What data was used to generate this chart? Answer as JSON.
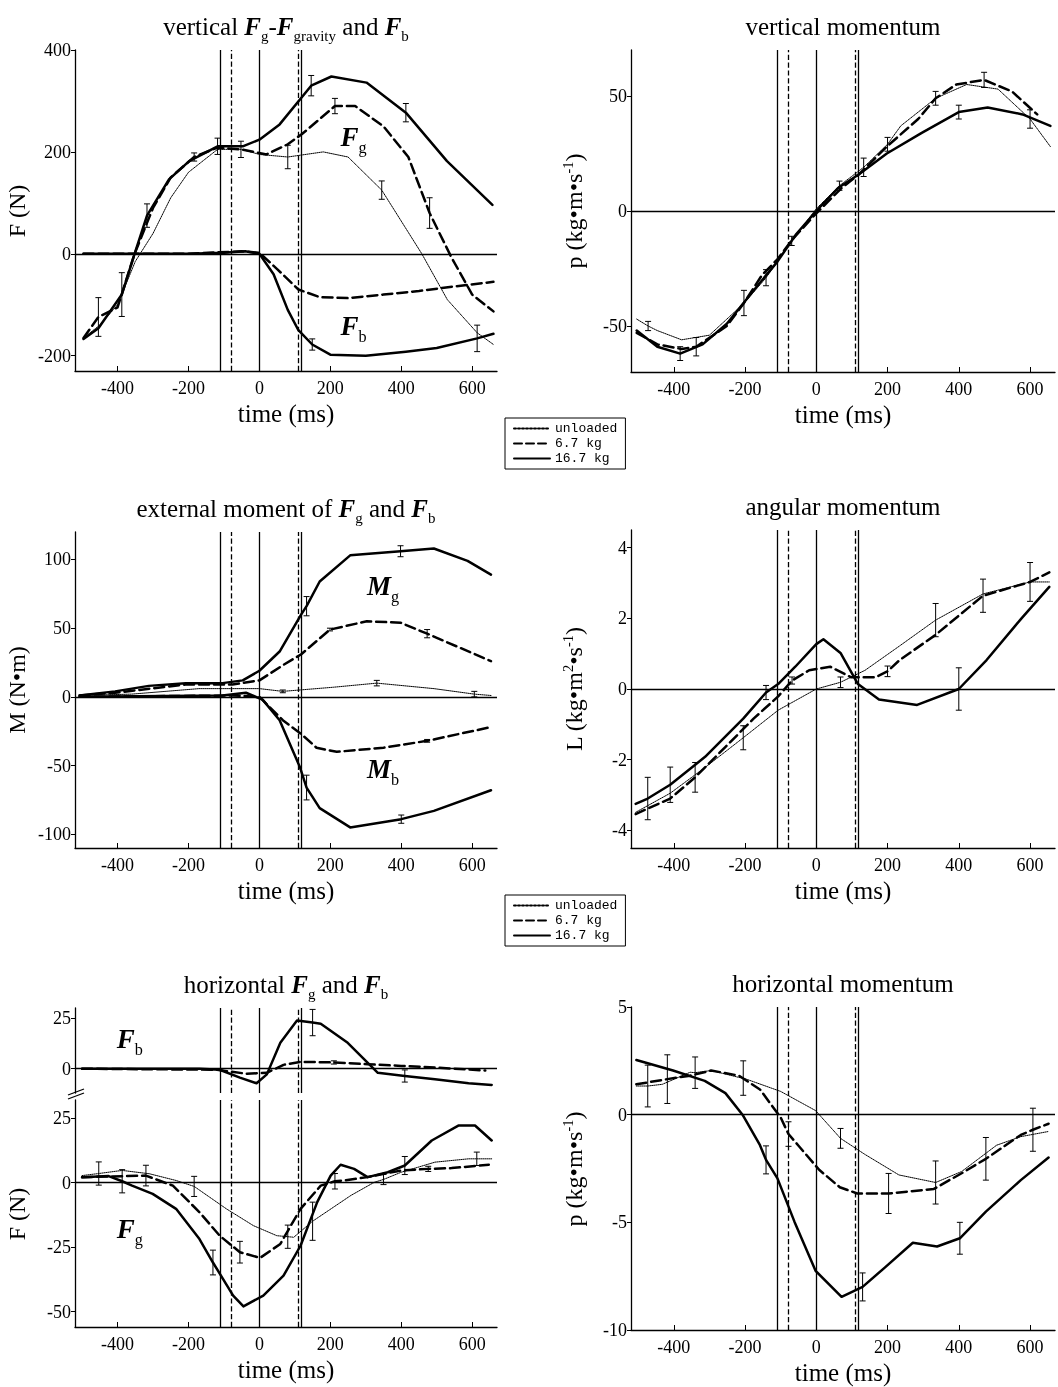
{
  "chart_data": [
    {
      "type": "line",
      "title": "vertical F$_{g}$-F$_{gravity}$ and F$_{b}$",
      "xlabel": "time (ms)",
      "ylabel": "F (N)",
      "xlim": [
        -520,
        670
      ],
      "xticks": [
        -400,
        -200,
        0,
        200,
        400,
        600
      ],
      "ylim": [
        -230,
        400
      ],
      "yticks": [
        -200,
        0,
        200,
        400
      ],
      "legend": "bottom right",
      "marker": "none",
      "series": [
        {
          "name": "unloaded",
          "color": "#000000",
          "line_style": "dotted",
          "x": [
            -496,
            -450,
            -400,
            -350,
            -300,
            -250,
            -200,
            -118,
            -50,
            0,
            80,
            180,
            250,
            345,
            458,
            530,
            614,
            660
          ],
          "values": [
            -165,
            -140,
            -100,
            -15,
            40,
            110,
            160,
            205,
            205,
            195,
            190,
            200,
            190,
            125,
            0,
            -90,
            -155,
            -178
          ],
          "errors": [
            null,
            null,
            null,
            null,
            null,
            null,
            null,
            null,
            null,
            null,
            23,
            null,
            null,
            18,
            null,
            null,
            null,
            null
          ]
        },
        {
          "name": "6.7 kg",
          "color": "#000000",
          "line_style": "dashed",
          "x": [
            -496,
            -454,
            -400,
            -352,
            -300,
            -250,
            -184,
            -120,
            -52,
            20,
            80,
            120,
            213,
            270,
            350,
            420,
            480,
            540,
            600,
            660
          ],
          "values": [
            -165,
            -124,
            -105,
            0,
            90,
            150,
            190,
            208,
            205,
            195,
            215,
            235,
            290,
            290,
            250,
            190,
            80,
            -5,
            -80,
            -113
          ],
          "errors": [
            null,
            38,
            null,
            null,
            null,
            null,
            8,
            null,
            16,
            null,
            null,
            null,
            15,
            null,
            null,
            null,
            30,
            null,
            null,
            null
          ]
        },
        {
          "name": "16.7 kg",
          "color": "#000000",
          "line_style": "solid",
          "x": [
            -496,
            -454,
            -388,
            -352,
            -317,
            -255,
            -198,
            -118,
            -47,
            0,
            57,
            146,
            203,
            302,
            413,
            529,
            657
          ],
          "values": [
            -167,
            -146,
            -80,
            0,
            75,
            146,
            182,
            211,
            211,
            224,
            254,
            330,
            348,
            336,
            277,
            182,
            96
          ],
          "errors": [
            null,
            null,
            43,
            null,
            23,
            null,
            null,
            16,
            null,
            null,
            null,
            20,
            null,
            null,
            18,
            null,
            null
          ]
        },
        {
          "color": "#000000",
          "line_style": "dashed",
          "x": [
            -496,
            -200,
            -50,
            0,
            50,
            110,
            170,
            250,
            350,
            450,
            550,
            660
          ],
          "values": [
            0,
            0,
            5,
            2,
            -30,
            -70,
            -85,
            -87,
            -80,
            -73,
            -64,
            -55
          ]
        },
        {
          "color": "#000000",
          "line_style": "solid",
          "x": [
            -496,
            -200,
            -100,
            -40,
            0,
            40,
            80,
            110,
            149,
            200,
            300,
            413,
            500,
            614,
            660
          ],
          "values": [
            0,
            0,
            2,
            5,
            0,
            -40,
            -110,
            -150,
            -178,
            -198,
            -200,
            -192,
            -185,
            -166,
            -157
          ],
          "errors": [
            null,
            null,
            null,
            null,
            null,
            null,
            null,
            null,
            11,
            null,
            null,
            null,
            null,
            26,
            null
          ]
        }
      ],
      "ref_lines": [
        {
          "axis": "x",
          "value": -110,
          "line_style": "solid",
          "color": "#000000"
        },
        {
          "axis": "x",
          "value": -80,
          "line_style": "dashed",
          "color": "#000000"
        },
        {
          "axis": "x",
          "value": 0,
          "line_style": "solid",
          "color": "#000000"
        },
        {
          "axis": "x",
          "value": 110,
          "line_style": "dashed",
          "color": "#000000"
        },
        {
          "axis": "x",
          "value": 118,
          "line_style": "solid",
          "color": "#000000"
        },
        {
          "axis": "y",
          "value": 0,
          "line_style": "solid",
          "color": "#000000"
        }
      ],
      "annotations": [
        "F$_{g}$",
        "F$_{b}$"
      ]
    },
    {
      "type": "line",
      "title": "vertical momentum",
      "xlabel": "time (ms)",
      "ylabel": "p (kg•m•s$^{-1}$)",
      "xlim": [
        -520,
        670
      ],
      "xticks": [
        -400,
        -200,
        0,
        200,
        400,
        600
      ],
      "ylim": [
        -70,
        70
      ],
      "yticks": [
        -50,
        0,
        50
      ],
      "marker": "none",
      "series": [
        {
          "color": "#000000",
          "line_style": "dotted",
          "x": [
            -504,
            -472,
            -446,
            -378,
            -300,
            -202,
            -141,
            -109,
            -69,
            0,
            65,
            133,
            200,
            237,
            335,
            422,
            510,
            600,
            657
          ],
          "values": [
            -47,
            -50,
            -52,
            -56,
            -54,
            -40,
            -29,
            -22,
            -13,
            1,
            11,
            19,
            29,
            37,
            49,
            55,
            53,
            40,
            28
          ],
          "errors": [
            null,
            2,
            null,
            null,
            null,
            null,
            3.5,
            null,
            2,
            null,
            2,
            4,
            3,
            null,
            null,
            null,
            null,
            4,
            null
          ]
        },
        {
          "color": "#000000",
          "line_style": "dashed",
          "x": [
            -504,
            -446,
            -378,
            -337,
            -251,
            -203,
            -153,
            -109,
            -65,
            0,
            71,
            120,
            198,
            286,
            335,
            393,
            471,
            549,
            620
          ],
          "values": [
            -53,
            -58,
            -60,
            -59,
            -50,
            -40,
            -28,
            -21,
            -12,
            -1,
            10,
            16,
            28,
            40,
            49,
            55,
            57,
            52,
            42
          ],
          "errors": [
            null,
            null,
            null,
            4,
            null,
            5.5,
            null,
            null,
            null,
            null,
            null,
            null,
            null,
            null,
            3,
            null,
            3.3,
            null,
            null
          ]
        },
        {
          "color": "#000000",
          "line_style": "solid",
          "x": [
            -504,
            -446,
            -382,
            -319,
            -251,
            -173,
            -109,
            -56,
            0,
            61,
            120,
            198,
            296,
            400,
            481,
            579,
            657
          ],
          "values": [
            -52,
            -59,
            -62,
            -58,
            -49,
            -34,
            -22,
            -10,
            0,
            10,
            16,
            25,
            34,
            43,
            45,
            42,
            37
          ],
          "errors": [
            null,
            null,
            3,
            null,
            null,
            null,
            null,
            null,
            null,
            null,
            null,
            null,
            null,
            3,
            null,
            null,
            null
          ]
        }
      ],
      "ref_lines": [
        {
          "axis": "x",
          "value": -110,
          "line_style": "solid",
          "color": "#000000"
        },
        {
          "axis": "x",
          "value": -80,
          "line_style": "dashed",
          "color": "#000000"
        },
        {
          "axis": "x",
          "value": 0,
          "line_style": "solid",
          "color": "#000000"
        },
        {
          "axis": "x",
          "value": 110,
          "line_style": "dashed",
          "color": "#000000"
        },
        {
          "axis": "x",
          "value": 118,
          "line_style": "solid",
          "color": "#000000"
        },
        {
          "axis": "y",
          "value": 0,
          "line_style": "solid",
          "color": "#000000"
        }
      ]
    },
    {
      "type": "line",
      "title": "external moment of F$_{g}$ and F$_{b}$",
      "xlabel": "time (ms)",
      "ylabel": "M (N•m)",
      "xlim": [
        -520,
        670
      ],
      "xticks": [
        -400,
        -200,
        0,
        200,
        400,
        600
      ],
      "ylim": [
        -110,
        120
      ],
      "yticks": [
        -100,
        -50,
        0,
        50,
        100
      ],
      "legend": "bottom right",
      "marker": "none",
      "series": [
        {
          "name": "unloaded",
          "color": "#000000",
          "line_style": "dotted",
          "x": [
            -507,
            -360,
            -170,
            0,
            66,
            208,
            331,
            492,
            606,
            653
          ],
          "values": [
            1,
            2,
            6,
            6,
            4,
            7,
            10,
            6,
            2,
            1
          ],
          "errors": [
            null,
            null,
            null,
            null,
            1,
            null,
            2,
            null,
            2,
            null
          ]
        },
        {
          "name": "6.7 kg",
          "color": "#000000",
          "line_style": "dashed",
          "x": [
            -507,
            -407,
            -208,
            -76,
            0,
            66,
            118,
            199,
            303,
            398,
            473,
            653
          ],
          "values": [
            1,
            3,
            9,
            9,
            12,
            23,
            31,
            49,
            55,
            54,
            46,
            26
          ],
          "errors": [
            null,
            null,
            null,
            null,
            null,
            null,
            null,
            1,
            null,
            null,
            3,
            null
          ]
        },
        {
          "name": "16.7 kg",
          "color": "#000000",
          "line_style": "solid",
          "x": [
            -507,
            -407,
            -312,
            -208,
            -104,
            -47,
            0,
            57,
            118,
            133,
            170,
            256,
            398,
            492,
            587,
            653
          ],
          "values": [
            1,
            4,
            8,
            10,
            10,
            12,
            19,
            33,
            60,
            66,
            84,
            103,
            106,
            108,
            99,
            89
          ],
          "errors": [
            null,
            null,
            null,
            null,
            null,
            null,
            null,
            null,
            null,
            7,
            null,
            null,
            4,
            null,
            null,
            null
          ]
        },
        {
          "color": "#000000",
          "line_style": "dashed",
          "x": [
            -507,
            -76,
            0,
            66,
            118,
            161,
            218,
            350,
            473,
            653
          ],
          "values": [
            0,
            1,
            0,
            -17,
            -27,
            -37,
            -40,
            -37,
            -32,
            -22
          ],
          "errors": [
            null,
            null,
            null,
            null,
            null,
            null,
            null,
            null,
            1,
            null
          ]
        },
        {
          "color": "#000000",
          "line_style": "solid",
          "x": [
            -507,
            -104,
            -38,
            9,
            57,
            114,
            133,
            170,
            256,
            400,
            492,
            653
          ],
          "values": [
            0,
            1,
            3,
            -2,
            -17,
            -51,
            -66,
            -81,
            -95,
            -89,
            -83,
            -68
          ],
          "errors": [
            null,
            null,
            null,
            null,
            null,
            null,
            9,
            null,
            null,
            3,
            null,
            null
          ]
        }
      ],
      "ref_lines": [
        {
          "axis": "x",
          "value": -110,
          "line_style": "solid",
          "color": "#000000"
        },
        {
          "axis": "x",
          "value": -80,
          "line_style": "dashed",
          "color": "#000000"
        },
        {
          "axis": "x",
          "value": 0,
          "line_style": "solid",
          "color": "#000000"
        },
        {
          "axis": "x",
          "value": 110,
          "line_style": "dashed",
          "color": "#000000"
        },
        {
          "axis": "x",
          "value": 118,
          "line_style": "solid",
          "color": "#000000"
        },
        {
          "axis": "y",
          "value": 0,
          "line_style": "solid",
          "color": "#000000"
        }
      ],
      "annotations": [
        "M$_{g}$",
        "M$_{b}$"
      ]
    },
    {
      "type": "line",
      "title": "angular momentum",
      "xlabel": "time (ms)",
      "ylabel": "L (kg•m$^{2}$•s$^{-1}$)",
      "xlim": [
        -520,
        670
      ],
      "xticks": [
        -400,
        -200,
        0,
        200,
        400,
        600
      ],
      "ylim": [
        -4.5,
        4.5
      ],
      "yticks": [
        -4,
        -2,
        0,
        2,
        4
      ],
      "marker": "none",
      "series": [
        {
          "color": "#000000",
          "line_style": "dotted",
          "x": [
            -507,
            -410,
            -312,
            -205,
            -107,
            0,
            68,
            137,
            234,
            335,
            468,
            600,
            654
          ],
          "values": [
            -3.49,
            -2.95,
            -2.22,
            -1.38,
            -0.6,
            0,
            0.19,
            0.53,
            1.22,
            1.95,
            2.69,
            3.03,
            3.03
          ],
          "errors": [
            null,
            null,
            null,
            0.34,
            null,
            null,
            0.15,
            null,
            null,
            0.47,
            null,
            null,
            null
          ]
        },
        {
          "color": "#000000",
          "line_style": "dashed",
          "x": [
            -507,
            -410,
            -340,
            -254,
            -176,
            -107,
            -68,
            -20,
            39,
            98,
            166,
            200,
            234,
            332,
            468,
            600,
            654
          ],
          "values": [
            -3.54,
            -3.1,
            -2.5,
            -1.63,
            -0.84,
            -0.21,
            0.24,
            0.53,
            0.63,
            0.33,
            0.33,
            0.5,
            0.82,
            1.51,
            2.64,
            3.03,
            3.3
          ],
          "errors": [
            null,
            null,
            0.42,
            null,
            null,
            null,
            0.1,
            null,
            null,
            null,
            null,
            0.15,
            null,
            null,
            0.47,
            0.55,
            null
          ]
        },
        {
          "color": "#000000",
          "line_style": "solid",
          "x": [
            -507,
            -473,
            -410,
            -312,
            -205,
            -141,
            -107,
            -59,
            0,
            20,
            68,
            117,
            176,
            283,
            400,
            478,
            576,
            654
          ],
          "values": [
            -3.25,
            -3.1,
            -2.71,
            -1.92,
            -0.84,
            -0.1,
            0.14,
            0.63,
            1.27,
            1.41,
            1.02,
            0.14,
            -0.3,
            -0.45,
            0,
            0.82,
            2.0,
            2.89
          ],
          "errors": [
            null,
            0.6,
            0.5,
            null,
            null,
            0.2,
            null,
            null,
            null,
            null,
            null,
            null,
            null,
            null,
            0.6,
            null,
            null,
            null
          ]
        }
      ],
      "ref_lines": [
        {
          "axis": "x",
          "value": -110,
          "line_style": "solid",
          "color": "#000000"
        },
        {
          "axis": "x",
          "value": -80,
          "line_style": "dashed",
          "color": "#000000"
        },
        {
          "axis": "x",
          "value": 0,
          "line_style": "solid",
          "color": "#000000"
        },
        {
          "axis": "x",
          "value": 110,
          "line_style": "dashed",
          "color": "#000000"
        },
        {
          "axis": "x",
          "value": 118,
          "line_style": "solid",
          "color": "#000000"
        },
        {
          "axis": "y",
          "value": 0,
          "line_style": "solid",
          "color": "#000000"
        }
      ]
    },
    {
      "type": "line",
      "title": "horizontal F$_{g}$ and F$_{b}$",
      "xlim": [
        -520,
        670
      ],
      "ylim": [
        -12,
        30
      ],
      "yticks": [
        0,
        25
      ],
      "tick_labels": "y",
      "marker": "none",
      "series": [
        {
          "color": "#000000",
          "line_style": "dashed",
          "x": [
            -500,
            -121,
            -36,
            21,
            68,
            116,
            210,
            305,
            400,
            495,
            637
          ],
          "values": [
            0,
            -0.5,
            -2.5,
            -2,
            1.9,
            3.4,
            3.1,
            2.2,
            1.4,
            0.6,
            -0.9
          ],
          "errors": [
            null,
            null,
            null,
            null,
            null,
            null,
            0.8,
            null,
            null,
            null,
            null
          ]
        },
        {
          "color": "#000000",
          "line_style": "solid",
          "x": [
            -500,
            -169,
            -112,
            -55,
            -8,
            21,
            59,
            106,
            150,
            173,
            249,
            334,
            410,
            495,
            590,
            655
          ],
          "values": [
            0,
            0,
            -0.5,
            -4.4,
            -7.2,
            -2.8,
            12.8,
            23.8,
            22.8,
            22.2,
            12.8,
            -2,
            -3.6,
            -5.2,
            -7.2,
            -8
          ],
          "errors": [
            null,
            null,
            null,
            null,
            null,
            null,
            null,
            null,
            6.5,
            null,
            null,
            null,
            3,
            null,
            null,
            null
          ]
        }
      ],
      "ref_lines": [
        {
          "axis": "x",
          "value": -110,
          "line_style": "solid",
          "color": "#000000"
        },
        {
          "axis": "x",
          "value": -80,
          "line_style": "dashed",
          "color": "#000000"
        },
        {
          "axis": "x",
          "value": 0,
          "line_style": "solid",
          "color": "#000000"
        },
        {
          "axis": "x",
          "value": 110,
          "line_style": "dashed",
          "color": "#000000"
        },
        {
          "axis": "x",
          "value": 118,
          "line_style": "solid",
          "color": "#000000"
        },
        {
          "axis": "y",
          "value": 0,
          "line_style": "solid",
          "color": "#000000"
        }
      ],
      "annotations": [
        "F$_{b}$"
      ]
    },
    {
      "type": "line",
      "xlabel": "time (ms)",
      "ylabel": "F (N)",
      "xlim": [
        -520,
        670
      ],
      "xticks": [
        -400,
        -200,
        0,
        200,
        400,
        600
      ],
      "ylim": [
        -56,
        32
      ],
      "yticks": [
        -50,
        -25,
        0,
        25
      ],
      "marker": "none",
      "series": [
        {
          "color": "#000000",
          "line_style": "dotted",
          "x": [
            -500,
            -453,
            -387,
            -310,
            -235,
            -184,
            -93,
            -17,
            49,
            80,
            97,
            150,
            258,
            324,
            350,
            400,
            495,
            590,
            613,
            655
          ],
          "values": [
            2.7,
            3.5,
            4.7,
            3.4,
            0.8,
            -1.5,
            -10.2,
            -16.7,
            -20.6,
            -21,
            -21.2,
            -15,
            -5,
            0.1,
            1.2,
            4.0,
            7.9,
            9.2,
            9.2,
            9.2
          ],
          "errors": [
            null,
            4.5,
            null,
            null,
            null,
            3.9,
            null,
            null,
            null,
            4.5,
            null,
            7.4,
            null,
            null,
            2,
            null,
            null,
            null,
            2.6,
            null
          ]
        },
        {
          "color": "#000000",
          "line_style": "dashed",
          "x": [
            -500,
            -320,
            -244,
            -169,
            -112,
            -55,
            2,
            59,
            116,
            173,
            213,
            239,
            305,
            400,
            476,
            542,
            647
          ],
          "values": [
            2.1,
            2.7,
            -1.2,
            -11.5,
            -20.6,
            -27,
            -29.2,
            -23.8,
            -10.2,
            -1.2,
            0.5,
            0.8,
            2.1,
            4.7,
            5.3,
            5.6,
            6.9
          ],
          "errors": [
            null,
            4,
            null,
            null,
            null,
            4.2,
            null,
            null,
            null,
            null,
            3,
            null,
            null,
            null,
            1,
            null,
            null
          ]
        },
        {
          "color": "#000000",
          "line_style": "solid",
          "x": [
            -500,
            -425,
            -387,
            -359,
            -301,
            -235,
            -169,
            -131,
            -74,
            -45,
            11,
            68,
            116,
            163,
            201,
            229,
            267,
            305,
            362,
            410,
            486,
            561,
            608,
            655
          ],
          "values": [
            2.1,
            2.5,
            0.5,
            -1.2,
            -4.4,
            -10.2,
            -21.9,
            -31,
            -43.8,
            -48,
            -43.8,
            -36.1,
            -24.5,
            -7.6,
            2.7,
            6.9,
            5.3,
            2.1,
            4.0,
            6.6,
            16.3,
            22.1,
            22.1,
            16.3
          ],
          "errors": [
            null,
            null,
            4.5,
            null,
            null,
            null,
            null,
            4.8,
            null,
            null,
            null,
            null,
            null,
            null,
            null,
            null,
            null,
            null,
            null,
            3.5,
            null,
            null,
            null,
            null
          ]
        }
      ],
      "ref_lines": [
        {
          "axis": "x",
          "value": -110,
          "line_style": "solid",
          "color": "#000000"
        },
        {
          "axis": "x",
          "value": -80,
          "line_style": "dashed",
          "color": "#000000"
        },
        {
          "axis": "x",
          "value": 0,
          "line_style": "solid",
          "color": "#000000"
        },
        {
          "axis": "x",
          "value": 110,
          "line_style": "dashed",
          "color": "#000000"
        },
        {
          "axis": "x",
          "value": 118,
          "line_style": "solid",
          "color": "#000000"
        },
        {
          "axis": "y",
          "value": 0,
          "line_style": "solid",
          "color": "#000000"
        }
      ],
      "annotations": [
        "F$_{g}$"
      ]
    },
    {
      "type": "line",
      "title": "horizontal momentum",
      "xlabel": "time (ms)",
      "ylabel": "p (kg•m•s$^{-1}$)",
      "xlim": [
        -520,
        670
      ],
      "xticks": [
        -400,
        -200,
        0,
        200,
        400,
        600
      ],
      "ylim": [
        -10,
        5
      ],
      "yticks": [
        -10,
        -5,
        0,
        5
      ],
      "marker": "none",
      "series": [
        {
          "color": "#000000",
          "line_style": "dotted",
          "x": [
            -505,
            -473,
            -432,
            -354,
            -340,
            -295,
            -217,
            -205,
            -100,
            -2,
            68,
            135,
            232,
            335,
            408,
            506,
            574,
            652
          ],
          "values": [
            1.33,
            1.33,
            1.41,
            1.97,
            1.95,
            2.05,
            1.73,
            1.7,
            1.08,
            0.19,
            -1.1,
            -1.83,
            -2.8,
            -3.15,
            -2.64,
            -1.42,
            -1.02,
            -0.78
          ],
          "errors": [
            null,
            0.97,
            null,
            null,
            0.73,
            null,
            null,
            0.8,
            null,
            null,
            0.46,
            null,
            null,
            1.0,
            null,
            null,
            null,
            null
          ]
        },
        {
          "color": "#000000",
          "line_style": "dashed",
          "x": [
            -505,
            -418,
            -354,
            -295,
            -217,
            -158,
            -100,
            -78,
            -51,
            8,
            66,
            115,
            203,
            330,
            408,
            476,
            574,
            608,
            652
          ],
          "values": [
            1.41,
            1.65,
            1.81,
            2.05,
            1.81,
            1.17,
            -0.13,
            -0.9,
            -1.42,
            -2.56,
            -3.37,
            -3.66,
            -3.66,
            -3.45,
            -2.72,
            -2.05,
            -0.94,
            -0.7,
            -0.42
          ],
          "errors": [
            null,
            1.13,
            null,
            null,
            null,
            null,
            null,
            0.57,
            null,
            null,
            null,
            null,
            0.93,
            null,
            null,
            0.99,
            null,
            1.0,
            null
          ]
        },
        {
          "color": "#000000",
          "line_style": "solid",
          "x": [
            -505,
            -402,
            -313,
            -255,
            -207,
            -158,
            -141,
            -109,
            -61,
            -2,
            71,
            130,
            193,
            271,
            339,
            403,
            476,
            574,
            652
          ],
          "values": [
            2.54,
            2.05,
            1.57,
            1.0,
            0,
            -1.42,
            -2.1,
            -2.96,
            -4.98,
            -7.25,
            -8.46,
            -8.0,
            -7.09,
            -5.95,
            -6.12,
            -5.74,
            -4.5,
            -3.04,
            -1.99
          ],
          "errors": [
            null,
            null,
            null,
            null,
            null,
            null,
            0.65,
            null,
            null,
            null,
            null,
            0.65,
            null,
            null,
            null,
            0.74,
            null,
            null,
            null
          ]
        }
      ],
      "ref_lines": [
        {
          "axis": "x",
          "value": -110,
          "line_style": "solid",
          "color": "#000000"
        },
        {
          "axis": "x",
          "value": -80,
          "line_style": "dashed",
          "color": "#000000"
        },
        {
          "axis": "x",
          "value": 0,
          "line_style": "solid",
          "color": "#000000"
        },
        {
          "axis": "x",
          "value": 110,
          "line_style": "dashed",
          "color": "#000000"
        },
        {
          "axis": "x",
          "value": 118,
          "line_style": "solid",
          "color": "#000000"
        },
        {
          "axis": "y",
          "value": 0,
          "line_style": "solid",
          "color": "#000000"
        }
      ]
    }
  ]
}
